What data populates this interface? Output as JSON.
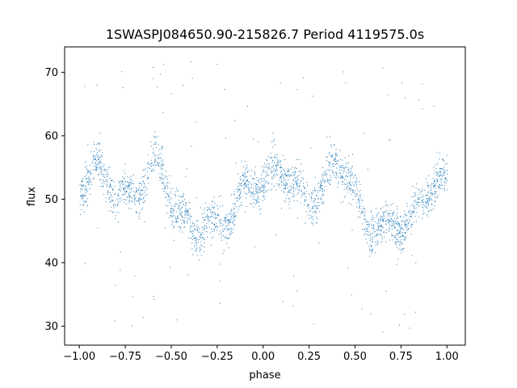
{
  "chart_data": {
    "type": "scatter",
    "title": "1SWASPJ084650.90-215826.7 Period 4119575.0s",
    "xlabel": "phase",
    "ylabel": "flux",
    "xlim": [
      -1.08,
      1.1
    ],
    "ylim": [
      27,
      74
    ],
    "xticks": [
      -1.0,
      -0.75,
      -0.5,
      -0.25,
      0.0,
      0.25,
      0.5,
      0.75,
      1.0
    ],
    "xtick_labels": [
      "−1.00",
      "−0.75",
      "−0.50",
      "−0.25",
      "0.00",
      "0.25",
      "0.50",
      "0.75",
      "1.00"
    ],
    "yticks": [
      30,
      40,
      50,
      60,
      70
    ],
    "ytick_labels": [
      "30",
      "40",
      "50",
      "60",
      "70"
    ],
    "grid": false,
    "legend": "none",
    "marker_color": "#1f77b4",
    "series": [
      {
        "phase_profile": [
          [
            0.0,
            52
          ],
          [
            0.05,
            54
          ],
          [
            0.1,
            55
          ],
          [
            0.15,
            53
          ],
          [
            0.2,
            51
          ],
          [
            0.25,
            50
          ],
          [
            0.3,
            51
          ],
          [
            0.35,
            53
          ],
          [
            0.4,
            56
          ],
          [
            0.45,
            55
          ],
          [
            0.5,
            50
          ],
          [
            0.55,
            47
          ],
          [
            0.6,
            46
          ],
          [
            0.65,
            45
          ],
          [
            0.7,
            46
          ],
          [
            0.75,
            46
          ],
          [
            0.8,
            47
          ],
          [
            0.85,
            49
          ],
          [
            0.9,
            52
          ],
          [
            0.95,
            53
          ],
          [
            1.0,
            52
          ]
        ],
        "values_summary": {
          "x_range": [
            -1.0,
            1.0
          ],
          "y_typical_range": [
            42,
            60
          ],
          "y_outlier_range": [
            29,
            72
          ]
        }
      }
    ]
  }
}
